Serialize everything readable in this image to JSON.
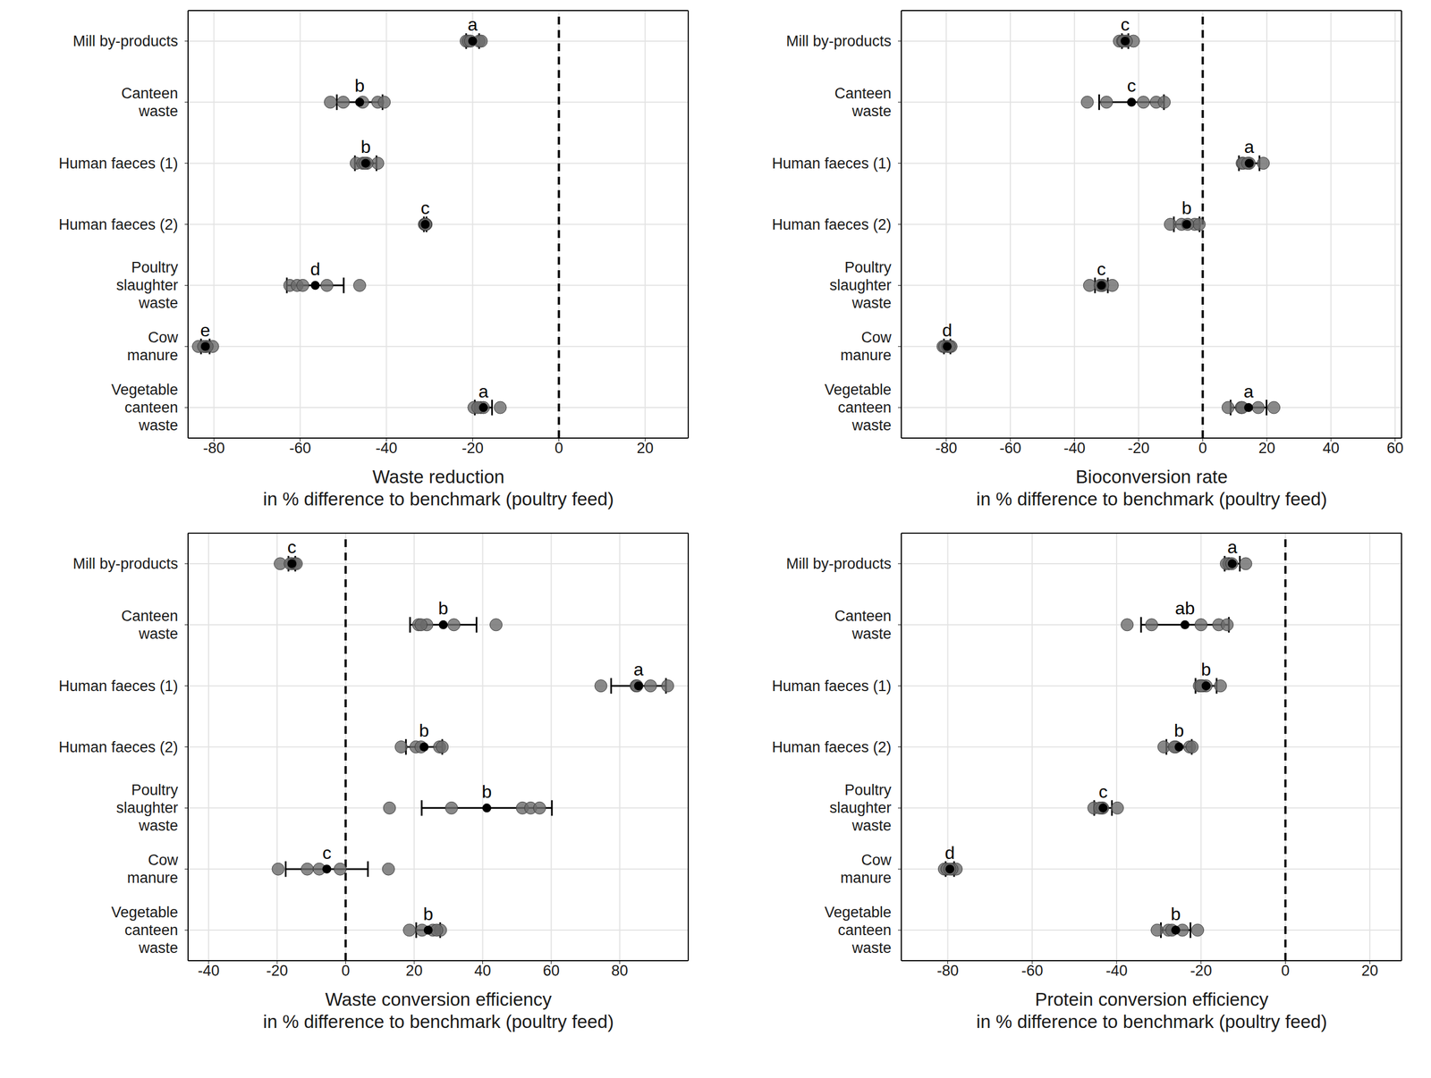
{
  "chart_data": [
    {
      "type": "scatter",
      "orientation": "horizontal",
      "grid": true,
      "xlabel": "Waste reduction\nin % difference to benchmark (poultry feed)",
      "categories": [
        "Mill by-products",
        "Canteen\nwaste",
        "Human faeces (1)",
        "Human faeces (2)",
        "Poultry\nslaughter\nwaste",
        "Cow\nmanure",
        "Vegetable\ncanteen\nwaste"
      ],
      "xlim": [
        -86,
        30
      ],
      "xticks": [
        -80,
        -60,
        -40,
        -20,
        0,
        20
      ],
      "benchmark": {
        "value": 0,
        "line_style": "dashed",
        "color": "#000000"
      },
      "replicates": {
        "color": "#6b6b6b",
        "values": [
          [
            -21.5,
            -21,
            -20.5,
            -18.5,
            -18
          ],
          [
            -42,
            -40.5,
            -53,
            -50,
            -45.5
          ],
          [
            -47,
            -42,
            -45.5,
            -44.5,
            -45
          ],
          [
            -31,
            -30.8,
            -31.2,
            -31,
            -30.9
          ],
          [
            -62.4,
            -60.7,
            -59.4,
            -53.8,
            -46.2
          ],
          [
            -83.6,
            -80.3,
            -82,
            -81.6,
            -82.4
          ],
          [
            -19.7,
            -13.6,
            -18.1,
            -17.5,
            -18.8
          ]
        ]
      },
      "means": {
        "color": "#000000",
        "values": [
          -20,
          -46.2,
          -44.8,
          -31,
          -56.5,
          -82,
          -17.5
        ],
        "errors": [
          1.5,
          5.3,
          2.5,
          0.3,
          6.6,
          1,
          2
        ],
        "labels": [
          "a",
          "b",
          "b",
          "c",
          "d",
          "e",
          "a"
        ]
      }
    },
    {
      "type": "scatter",
      "orientation": "horizontal",
      "grid": true,
      "xlabel": "Bioconversion rate\nin % difference to benchmark (poultry feed)",
      "categories": [
        "Mill by-products",
        "Canteen\nwaste",
        "Human faeces (1)",
        "Human faeces (2)",
        "Poultry\nslaughter\nwaste",
        "Cow\nmanure",
        "Vegetable\ncanteen\nwaste"
      ],
      "xlim": [
        -94,
        62
      ],
      "xticks": [
        -80,
        -60,
        -40,
        -20,
        0,
        20,
        40,
        60
      ],
      "benchmark": {
        "value": 0,
        "line_style": "dashed",
        "color": "#000000"
      },
      "replicates": {
        "color": "#6b6b6b",
        "values": [
          [
            -26,
            -25,
            -21.6,
            -23.8,
            -24.7
          ],
          [
            -36,
            -30,
            -18.5,
            -14.5,
            -12
          ],
          [
            12.3,
            12.6,
            18.9,
            14.5,
            14
          ],
          [
            -10.1,
            -6.6,
            -2.5,
            -1.1,
            -4.7
          ],
          [
            -35.3,
            -28.2,
            -31.5,
            -31.2,
            -32
          ],
          [
            -81,
            -80.5,
            -79.5,
            -78.5,
            -79
          ],
          [
            7.9,
            12,
            17.3,
            22.2,
            12.3
          ]
        ]
      },
      "means": {
        "color": "#000000",
        "values": [
          -24.2,
          -22.2,
          14.5,
          -5,
          -31.6,
          -79.7,
          14.3
        ],
        "errors": [
          1,
          10.1,
          3.2,
          4,
          2,
          1,
          5.6
        ],
        "labels": [
          "c",
          "c",
          "a",
          "b",
          "c",
          "d",
          "a"
        ]
      }
    },
    {
      "type": "scatter",
      "orientation": "horizontal",
      "grid": true,
      "xlabel": "Waste conversion efficiency\nin % difference to benchmark (poultry feed)",
      "categories": [
        "Mill by-products",
        "Canteen\nwaste",
        "Human faeces (1)",
        "Human faeces (2)",
        "Poultry\nslaughter\nwaste",
        "Cow\nmanure",
        "Vegetable\ncanteen\nwaste"
      ],
      "xlim": [
        -46,
        100
      ],
      "xticks": [
        -40,
        -20,
        0,
        20,
        40,
        60,
        80
      ],
      "benchmark": {
        "value": 0,
        "line_style": "dashed",
        "color": "#000000"
      },
      "replicates": {
        "color": "#6b6b6b",
        "values": [
          [
            -19.1,
            -15.7,
            -14.9,
            -14.4,
            -16.2
          ],
          [
            21.3,
            23.7,
            31.6,
            43.9,
            22
          ],
          [
            74.5,
            84.8,
            89,
            94,
            85
          ],
          [
            16.2,
            20.5,
            27.4,
            28.2,
            22
          ],
          [
            12.8,
            30.9,
            51.6,
            54,
            56.6
          ],
          [
            -19.7,
            -11.2,
            -7.7,
            -1.6,
            12.5
          ],
          [
            18.6,
            22.3,
            25.5,
            27.7,
            26.6
          ]
        ]
      },
      "means": {
        "color": "#000000",
        "values": [
          -15.7,
          28.5,
          85.5,
          22.9,
          41.2,
          -5.5,
          24.1
        ],
        "errors": [
          1,
          9.7,
          8,
          5.3,
          19,
          12,
          3.5
        ],
        "labels": [
          "c",
          "b",
          "a",
          "b",
          "b",
          "c",
          "b"
        ]
      }
    },
    {
      "type": "scatter",
      "orientation": "horizontal",
      "grid": true,
      "xlabel": "Protein conversion efficiency\nin % difference to benchmark (poultry feed)",
      "categories": [
        "Mill by-products",
        "Canteen\nwaste",
        "Human faeces (1)",
        "Human faeces (2)",
        "Poultry\nslaughter\nwaste",
        "Cow\nmanure",
        "Vegetable\ncanteen\nwaste"
      ],
      "xlim": [
        -91,
        27.5
      ],
      "xticks": [
        -80,
        -60,
        -40,
        -20,
        0,
        20
      ],
      "benchmark": {
        "value": 0,
        "line_style": "dashed",
        "color": "#000000"
      },
      "replicates": {
        "color": "#6b6b6b",
        "values": [
          [
            -13.5,
            -13.3,
            -9.4,
            -14,
            -12.7
          ],
          [
            -37.5,
            -31.7,
            -20,
            -15.8,
            -13.8
          ],
          [
            -20.4,
            -18.8,
            -15.4,
            -19.6,
            -20
          ],
          [
            -28.8,
            -22.7,
            -22.1,
            -26,
            -26.3
          ],
          [
            -45.4,
            -39.8,
            -43.5,
            -43.3,
            -44
          ],
          [
            -80.8,
            -80.2,
            -78,
            -79,
            -79.5
          ],
          [
            -30.4,
            -27.7,
            -24.4,
            -20.8,
            -26.9
          ]
        ]
      },
      "means": {
        "color": "#000000",
        "values": [
          -12.6,
          -23.8,
          -18.8,
          -25.2,
          -43.2,
          -79.5,
          -26
        ],
        "errors": [
          1.8,
          10.4,
          2.5,
          3,
          2.1,
          1,
          3.5
        ],
        "labels": [
          "a",
          "ab",
          "b",
          "b",
          "c",
          "d",
          "b"
        ]
      }
    }
  ]
}
